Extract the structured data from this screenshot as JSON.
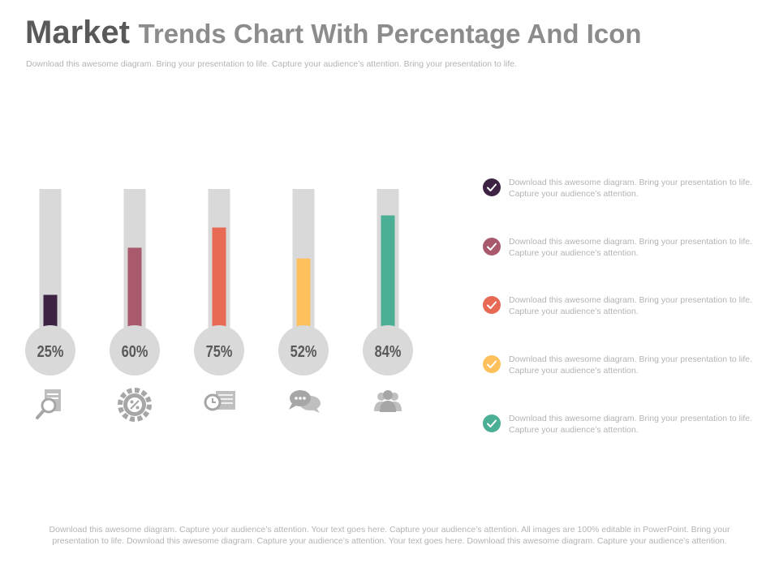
{
  "header": {
    "title_bold": "Market",
    "title_rest": "Trends Chart With Percentage And Icon",
    "subtitle": "Download this awesome diagram. Bring your presentation to life. Capture your  audience’s attention. Bring your presentation to life."
  },
  "chart_data": {
    "type": "bar",
    "categories": [
      "25%",
      "60%",
      "75%",
      "52%",
      "84%"
    ],
    "values": [
      25,
      60,
      75,
      52,
      84
    ],
    "value_labels": [
      "25%",
      "60%",
      "75%",
      "52%",
      "84%"
    ],
    "ylim": [
      0,
      100
    ],
    "title": "",
    "xlabel": "",
    "ylabel": "",
    "colors": [
      "#3d2243",
      "#a85a6c",
      "#e86a55",
      "#fdc05a",
      "#4aaf94"
    ],
    "track_color": "#d9d9d9",
    "icons": [
      "search-document-icon",
      "gear-percent-icon",
      "clock-calendar-icon",
      "chat-bubbles-icon",
      "users-group-icon"
    ],
    "grid": false,
    "legend": "none"
  },
  "items": [
    {
      "text": "Download this awesome diagram. Bring your presentation to life. Capture your audience’s attention.",
      "color": "#3d2243"
    },
    {
      "text": "Download this awesome diagram. Bring your presentation to life. Capture your audience’s attention.",
      "color": "#a85a6c"
    },
    {
      "text": "Download this awesome diagram. Bring your presentation to life. Capture your audience’s attention.",
      "color": "#e86a55"
    },
    {
      "text": "Download this awesome diagram. Bring your presentation to life. Capture your audience’s attention.",
      "color": "#fdc05a"
    },
    {
      "text": "Download this awesome diagram. Bring your presentation to life. Capture your audience’s attention.",
      "color": "#4aaf94"
    }
  ],
  "footer": {
    "text": "Download this awesome diagram. Capture your audience’s attention. Your text  goes here. Capture your audience’s attention. All images are 100% editable in PowerPoint. Bring your  presentation to life. Download this awesome diagram.  Capture your audience’s attention. Your text  goes here. Download this awesome diagram. Capture your audience’s attention."
  }
}
